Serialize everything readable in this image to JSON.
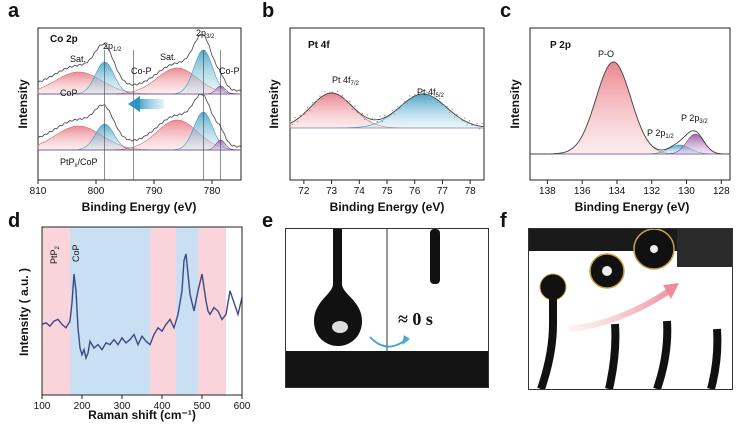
{
  "figure": {
    "labels": [
      "a",
      "b",
      "c",
      "d",
      "e",
      "f"
    ]
  },
  "colors": {
    "red": "#e8707a",
    "blue": "#4aa6c8",
    "purple": "#8a4a9a",
    "pink_band": "#f9d4da",
    "blue_band": "#c9e0f3"
  },
  "chart_data": [
    {
      "panel": "a",
      "type": "line",
      "title": "Co 2p",
      "xlabel": "Binding Energy (eV)",
      "ylabel": "Intensity",
      "xlim": [
        810,
        775
      ],
      "xticks": [
        810,
        800,
        790,
        780
      ],
      "traces": [
        "CoP",
        "PtPx/CoP"
      ],
      "peaks": [
        {
          "label": "Sat.",
          "position": 803,
          "color": "red"
        },
        {
          "label_main": "2p",
          "label_sub": "1/2",
          "position": 798.5,
          "color": "blue"
        },
        {
          "label": "Co-P",
          "position": 793.5,
          "color": "none"
        },
        {
          "label": "Sat.",
          "position": 786,
          "color": "red"
        },
        {
          "label_main": "2p",
          "label_sub": "3/2",
          "position": 781.5,
          "color": "blue"
        },
        {
          "label": "Co-P",
          "position": 778.5,
          "color": "purple"
        }
      ],
      "curve_labels": {
        "top_main": "CoP",
        "bottom_main": "PtP",
        "bottom_sub": "x",
        "bottom_suffix": "/CoP"
      },
      "shift_arrow": "shift to lower binding energy"
    },
    {
      "panel": "b",
      "type": "line",
      "title": "Pt 4f",
      "xlabel": "Binding Energy (eV)",
      "ylabel": "Intensity",
      "xlim": [
        71.5,
        78.5
      ],
      "xticks": [
        72,
        73,
        74,
        75,
        76,
        77,
        78
      ],
      "peaks": [
        {
          "label_main": "Pt 4f",
          "label_sub": "7/2",
          "position": 73.0,
          "color": "red"
        },
        {
          "label_main": "Pt 4f",
          "label_sub": "5/2",
          "position": 76.3,
          "color": "blue"
        }
      ]
    },
    {
      "panel": "c",
      "type": "line",
      "title": "P 2p",
      "xlabel": "Binding Energy (eV)",
      "ylabel": "Intensity",
      "xlim": [
        139,
        127.5
      ],
      "xticks": [
        138,
        136,
        134,
        132,
        130,
        128
      ],
      "peaks": [
        {
          "label": "P-O",
          "position": 134.2,
          "color": "red"
        },
        {
          "label_main": "P 2p",
          "label_sub": "1/2",
          "position": 130.4,
          "color": "blue"
        },
        {
          "label_main": "P 2p",
          "label_sub": "3/2",
          "position": 129.5,
          "color": "purple"
        }
      ]
    },
    {
      "panel": "d",
      "type": "line",
      "xlabel": "Raman shift (cm⁻¹)",
      "ylabel": "Intensity ( a.u. )",
      "xlim": [
        100,
        600
      ],
      "xticks": [
        100,
        200,
        300,
        400,
        500,
        600
      ],
      "bands": [
        {
          "label_main": "PtP",
          "label_sub": "2",
          "range": [
            100,
            170
          ],
          "color": "pink"
        },
        {
          "label": "CoP",
          "range": [
            170,
            370
          ],
          "color": "blue"
        },
        {
          "label": "",
          "range": [
            370,
            435
          ],
          "color": "pink"
        },
        {
          "label": "",
          "range": [
            435,
            490
          ],
          "color": "blue"
        },
        {
          "label": "",
          "range": [
            490,
            560
          ],
          "color": "pink"
        }
      ],
      "series": [
        {
          "name": "Raman",
          "x": [
            100,
            110,
            120,
            130,
            140,
            150,
            160,
            170,
            175,
            180,
            185,
            190,
            195,
            200,
            205,
            210,
            215,
            220,
            225,
            230,
            240,
            250,
            260,
            270,
            280,
            290,
            300,
            310,
            320,
            330,
            340,
            350,
            360,
            370,
            380,
            390,
            400,
            410,
            420,
            430,
            440,
            450,
            455,
            460,
            465,
            470,
            475,
            480,
            490,
            500,
            505,
            510,
            515,
            520,
            530,
            540,
            550,
            560,
            570,
            580,
            590,
            600
          ],
          "y": [
            0.42,
            0.43,
            0.41,
            0.44,
            0.45,
            0.42,
            0.4,
            0.44,
            0.55,
            0.72,
            0.62,
            0.4,
            0.28,
            0.24,
            0.27,
            0.22,
            0.25,
            0.32,
            0.3,
            0.28,
            0.3,
            0.27,
            0.31,
            0.3,
            0.33,
            0.3,
            0.34,
            0.31,
            0.33,
            0.36,
            0.3,
            0.35,
            0.32,
            0.3,
            0.36,
            0.4,
            0.38,
            0.42,
            0.45,
            0.4,
            0.48,
            0.62,
            0.8,
            0.84,
            0.72,
            0.6,
            0.55,
            0.5,
            0.62,
            0.72,
            0.64,
            0.56,
            0.5,
            0.48,
            0.52,
            0.5,
            0.45,
            0.48,
            0.62,
            0.55,
            0.48,
            0.58
          ]
        }
      ]
    }
  ],
  "panel_e": {
    "annotation": "≈ 0 s"
  },
  "panel_f": {}
}
